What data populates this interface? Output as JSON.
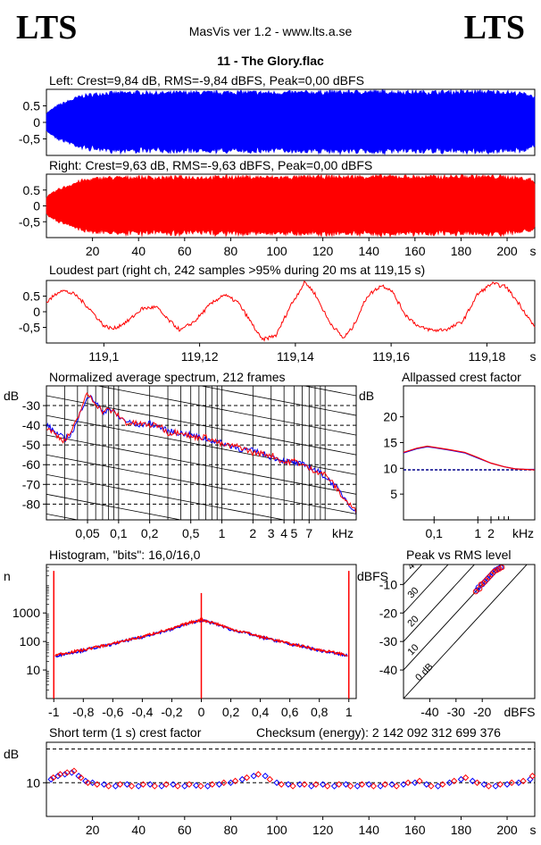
{
  "header": {
    "logo_left": "LTS",
    "logo_right": "LTS",
    "app_title": "MasVis ver 1.2 - www.lts.a.se",
    "track_title": "11 - The Glory.flac"
  },
  "panels": {
    "left": {
      "title": "Left: Crest=9,84 dB, RMS=-9,84 dBFS, Peak=0,00 dBFS"
    },
    "right": {
      "title": "Right: Crest=9,63 dB, RMS=-9,63 dBFS, Peak=0,00 dBFS"
    },
    "loudest": {
      "title": "Loudest part (right ch, 242 samples >95% during 20 ms at 119,15 s)"
    },
    "spectrum": {
      "title": "Normalized average spectrum, 212 frames"
    },
    "allpassed": {
      "title": "Allpassed crest factor"
    },
    "histogram": {
      "title": "Histogram, \"bits\": 16,0/16,0"
    },
    "peakrms": {
      "title": "Peak vs RMS level"
    },
    "shortterm": {
      "title": "Short term (1 s) crest factor",
      "checksum": "Checksum (energy):  2 142 092 312 699 376"
    }
  },
  "chart_data": [
    {
      "id": "left-waveform",
      "type": "area",
      "title": "Left: Crest=9,84 dB, RMS=-9,84 dBFS, Peak=0,00 dBFS",
      "yticks": [
        "0.5",
        "0",
        "-0,5"
      ],
      "ylim": [
        -1,
        1
      ],
      "xlim": [
        0,
        212
      ],
      "color": "#0000ff",
      "envelope_x": [
        0,
        5,
        10,
        15,
        20,
        25,
        30,
        40,
        50,
        60,
        70,
        80,
        90,
        100,
        110,
        120,
        130,
        140,
        150,
        160,
        170,
        180,
        190,
        200,
        210,
        212
      ],
      "envelope_amp": [
        0.3,
        0.55,
        0.7,
        0.85,
        0.9,
        0.95,
        0.95,
        0.97,
        0.95,
        0.97,
        0.96,
        0.98,
        0.97,
        0.96,
        0.97,
        0.98,
        0.98,
        0.99,
        0.99,
        0.98,
        0.98,
        0.99,
        0.99,
        0.98,
        0.9,
        0.8
      ]
    },
    {
      "id": "right-waveform",
      "type": "area",
      "title": "Right: Crest=9,63 dB, RMS=-9,63 dBFS, Peak=0,00 dBFS",
      "yticks": [
        "0.5",
        "0",
        "-0,5"
      ],
      "ylim": [
        -1,
        1
      ],
      "xlim": [
        0,
        212
      ],
      "xticks": [
        "20",
        "40",
        "60",
        "80",
        "100",
        "120",
        "140",
        "160",
        "180",
        "200"
      ],
      "xunit": "s",
      "color": "#ff0000",
      "envelope_x": [
        0,
        5,
        10,
        15,
        20,
        25,
        30,
        40,
        50,
        60,
        70,
        80,
        90,
        100,
        110,
        120,
        130,
        140,
        150,
        160,
        170,
        180,
        190,
        200,
        210,
        212
      ],
      "envelope_amp": [
        0.3,
        0.55,
        0.7,
        0.85,
        0.9,
        0.95,
        0.95,
        0.97,
        0.95,
        0.97,
        0.96,
        0.98,
        0.97,
        0.96,
        0.97,
        0.98,
        0.98,
        0.99,
        0.99,
        0.98,
        0.98,
        0.99,
        0.99,
        0.98,
        0.9,
        0.8
      ]
    },
    {
      "id": "loudest-part",
      "type": "line",
      "title": "Loudest part (right ch, 242 samples >95% during 20 ms at 119,15 s)",
      "yticks": [
        "0.5",
        "0",
        "-0,5"
      ],
      "ylim": [
        -1,
        1
      ],
      "xlim": [
        119.088,
        119.19
      ],
      "xticks": [
        "119,1",
        "119,12",
        "119,14",
        "119,16",
        "119,18"
      ],
      "xunit": "s",
      "color": "#ff0000",
      "x": [
        119.088,
        119.091,
        119.094,
        119.097,
        119.1,
        119.102,
        119.105,
        119.108,
        119.111,
        119.113,
        119.116,
        119.119,
        119.122,
        119.125,
        119.128,
        119.131,
        119.133,
        119.136,
        119.139,
        119.142,
        119.144,
        119.147,
        119.15,
        119.152,
        119.155,
        119.158,
        119.16,
        119.163,
        119.166,
        119.169,
        119.172,
        119.175,
        119.178,
        119.181,
        119.184,
        119.187,
        119.19
      ],
      "y": [
        0.3,
        0.7,
        0.55,
        0.1,
        -0.45,
        -0.55,
        -0.3,
        0.1,
        0.15,
        -0.2,
        -0.6,
        -0.3,
        0.2,
        0.55,
        0.3,
        -0.4,
        -0.9,
        -0.75,
        0.2,
        0.95,
        0.6,
        -0.3,
        -0.85,
        -0.5,
        0.5,
        0.85,
        0.7,
        -0.1,
        -0.5,
        -0.6,
        -0.55,
        -0.3,
        0.55,
        0.9,
        0.8,
        0.2,
        -0.5
      ]
    },
    {
      "id": "average-spectrum",
      "type": "line",
      "title": "Normalized average spectrum, 212 frames",
      "ylabel": "dB",
      "yticks": [
        "-30",
        "-40",
        "-50",
        "-60",
        "-70",
        "-80"
      ],
      "ylim": [
        -88,
        -20
      ],
      "xscale": "log",
      "xlim": [
        0.02,
        20
      ],
      "xticks": [
        "0,05",
        "0,1",
        "0,2",
        "0,5",
        "1",
        "2",
        "3",
        "4",
        "5",
        "7"
      ],
      "xunit": "kHz",
      "series": [
        {
          "color": "#0000ff",
          "x": [
            0.02,
            0.025,
            0.03,
            0.035,
            0.04,
            0.045,
            0.05,
            0.06,
            0.07,
            0.08,
            0.1,
            0.12,
            0.15,
            0.2,
            0.25,
            0.3,
            0.4,
            0.5,
            0.7,
            1,
            1.5,
            2,
            3,
            4,
            5,
            7,
            10,
            15,
            20
          ],
          "y": [
            -40,
            -44,
            -47,
            -44,
            -38,
            -30,
            -25,
            -28,
            -34,
            -31,
            -36,
            -38,
            -40,
            -39,
            -41,
            -43,
            -44,
            -45,
            -47,
            -49,
            -52,
            -53,
            -56,
            -58,
            -59,
            -61,
            -66,
            -76,
            -85
          ]
        },
        {
          "color": "#ff0000",
          "x": [
            0.02,
            0.025,
            0.03,
            0.035,
            0.04,
            0.045,
            0.05,
            0.06,
            0.07,
            0.08,
            0.1,
            0.12,
            0.15,
            0.2,
            0.25,
            0.3,
            0.4,
            0.5,
            0.7,
            1,
            1.5,
            2,
            3,
            4,
            5,
            7,
            10,
            15,
            20
          ],
          "y": [
            -41,
            -45,
            -48,
            -43,
            -37,
            -29,
            -24,
            -29,
            -33,
            -32,
            -35,
            -39,
            -39,
            -40,
            -40,
            -44,
            -43,
            -46,
            -46,
            -50,
            -51,
            -54,
            -55,
            -59,
            -58,
            -62,
            -65,
            -77,
            -84
          ]
        }
      ]
    },
    {
      "id": "allpassed-crest",
      "type": "line",
      "title": "Allpassed crest factor",
      "ylabel": "dB",
      "yticks": [
        "20",
        "15",
        "10",
        "5"
      ],
      "ylim": [
        0,
        26
      ],
      "xscale": "log",
      "xlim": [
        0.02,
        20
      ],
      "xticks": [
        "0,1",
        "1",
        "2"
      ],
      "xunit": "kHz",
      "reference_db": 9.7,
      "series": [
        {
          "color": "#0000ff",
          "x": [
            0.02,
            0.04,
            0.07,
            0.1,
            0.2,
            0.5,
            1,
            2,
            4,
            7,
            12,
            20
          ],
          "y": [
            13,
            13.8,
            14.2,
            14,
            13.6,
            13,
            12,
            11,
            10.3,
            9.9,
            9.8,
            9.8
          ]
        },
        {
          "color": "#ff0000",
          "x": [
            0.02,
            0.04,
            0.07,
            0.1,
            0.2,
            0.5,
            1,
            2,
            4,
            7,
            12,
            20
          ],
          "y": [
            13.1,
            13.9,
            14.3,
            14.1,
            13.7,
            13.1,
            12.1,
            11,
            10.3,
            9.9,
            9.8,
            9.7
          ]
        }
      ]
    },
    {
      "id": "histogram",
      "type": "line",
      "title": "Histogram, \"bits\": 16,0/16,0",
      "ylabel": "n",
      "yscale": "log",
      "yticks": [
        "1000",
        "100",
        "10"
      ],
      "ylim": [
        1,
        50000
      ],
      "xlim": [
        -1.05,
        1.05
      ],
      "xticks": [
        "-1",
        "-0,8",
        "-0,6",
        "-0,4",
        "-0,2",
        "0",
        "0,2",
        "0,4",
        "0,6",
        "0,8",
        "1"
      ],
      "series": [
        {
          "color": "#0000ff",
          "x": [
            -0.99,
            -0.8,
            -0.6,
            -0.4,
            -0.2,
            -0.05,
            0,
            0.05,
            0.2,
            0.4,
            0.6,
            0.8,
            0.99
          ],
          "y": [
            31,
            48,
            80,
            140,
            260,
            480,
            560,
            480,
            260,
            140,
            80,
            48,
            31
          ]
        },
        {
          "color": "#ff0000",
          "x": [
            -0.99,
            -0.8,
            -0.6,
            -0.4,
            -0.2,
            -0.05,
            0,
            0.05,
            0.2,
            0.4,
            0.6,
            0.8,
            0.99
          ],
          "y": [
            33,
            50,
            82,
            145,
            270,
            500,
            580,
            500,
            270,
            145,
            82,
            50,
            33
          ]
        }
      ],
      "spikes": [
        {
          "x": -1,
          "y": 30000
        },
        {
          "x": 0,
          "y": 5000
        },
        {
          "x": 1,
          "y": 30000
        }
      ]
    },
    {
      "id": "peak-vs-rms",
      "type": "scatter",
      "title": "Peak vs RMS level",
      "ylabel": "dBFS",
      "yticks": [
        "-10",
        "-20",
        "-30",
        "-40"
      ],
      "ylim": [
        -50,
        -3
      ],
      "xlabel": "dBFS",
      "xticks": [
        "-40",
        "-30",
        "-20"
      ],
      "xlim": [
        -50,
        0
      ],
      "diagonal_labels": [
        "40",
        "30",
        "20",
        "10",
        "0 dB"
      ],
      "series": [
        {
          "color": "#0000ff",
          "x": [
            -22,
            -21.5,
            -20,
            -19,
            -18,
            -17,
            -16,
            -15,
            -14,
            -13
          ],
          "y": [
            -12,
            -11,
            -10,
            -9,
            -8,
            -7,
            -6,
            -5,
            -4.5,
            -4
          ]
        },
        {
          "color": "#ff0000",
          "x": [
            -22.5,
            -21,
            -20.5,
            -19.5,
            -18.5,
            -17.5,
            -16.5,
            -15.5,
            -14.5,
            -13.5,
            -12.5
          ],
          "y": [
            -12.5,
            -11.5,
            -10,
            -9.5,
            -8.5,
            -7.5,
            -6.5,
            -5.5,
            -5,
            -4.5,
            -4
          ]
        }
      ]
    },
    {
      "id": "short-term-crest",
      "type": "scatter",
      "title": "Short term (1 s) crest factor",
      "ylabel": "dB",
      "yticks": [
        "10"
      ],
      "ylim": [
        0,
        22
      ],
      "reference_lines": [
        10,
        20
      ],
      "xlim": [
        0,
        212
      ],
      "xticks": [
        "20",
        "40",
        "60",
        "80",
        "100",
        "120",
        "140",
        "160",
        "180",
        "200"
      ],
      "xunit": "s",
      "series": [
        {
          "color": "#0000ff",
          "x": [
            2,
            5,
            8,
            11,
            14,
            17,
            20,
            25,
            30,
            35,
            40,
            45,
            50,
            55,
            60,
            65,
            70,
            75,
            80,
            85,
            90,
            95,
            100,
            105,
            110,
            115,
            120,
            125,
            130,
            135,
            140,
            145,
            150,
            155,
            160,
            165,
            170,
            175,
            180,
            185,
            190,
            195,
            200,
            205,
            210
          ],
          "y": [
            11,
            12,
            12.5,
            13,
            12,
            10.5,
            10,
            9.5,
            9,
            9.5,
            9,
            9.5,
            9,
            9.5,
            9,
            9.2,
            9,
            9.5,
            10,
            11,
            12,
            12,
            10,
            9.5,
            9.5,
            9,
            9.5,
            9,
            9.5,
            9,
            9.5,
            9,
            9.5,
            9.5,
            10,
            9.5,
            9,
            10,
            11,
            10.5,
            9.5,
            9,
            9.5,
            10,
            11
          ]
        },
        {
          "color": "#ff0000",
          "x": [
            3,
            6,
            9,
            12,
            15,
            18,
            22,
            27,
            32,
            37,
            42,
            47,
            52,
            57,
            62,
            67,
            72,
            77,
            82,
            87,
            92,
            97,
            102,
            107,
            112,
            117,
            122,
            127,
            132,
            137,
            142,
            147,
            152,
            157,
            162,
            167,
            172,
            177,
            182,
            187,
            192,
            197,
            202,
            207,
            211
          ],
          "y": [
            11.5,
            12.5,
            13,
            13.5,
            11.5,
            10,
            9.5,
            9,
            9.5,
            9,
            9.5,
            9,
            9.5,
            9,
            9.5,
            9,
            9.5,
            10,
            10.5,
            11.5,
            12.5,
            11,
            9.5,
            9,
            9.5,
            9.5,
            9,
            9.5,
            9,
            9.5,
            9,
            9.5,
            9,
            10,
            10.5,
            9,
            9.5,
            10.5,
            11.5,
            10,
            9,
            9.5,
            10,
            10.5,
            12
          ]
        }
      ]
    }
  ]
}
